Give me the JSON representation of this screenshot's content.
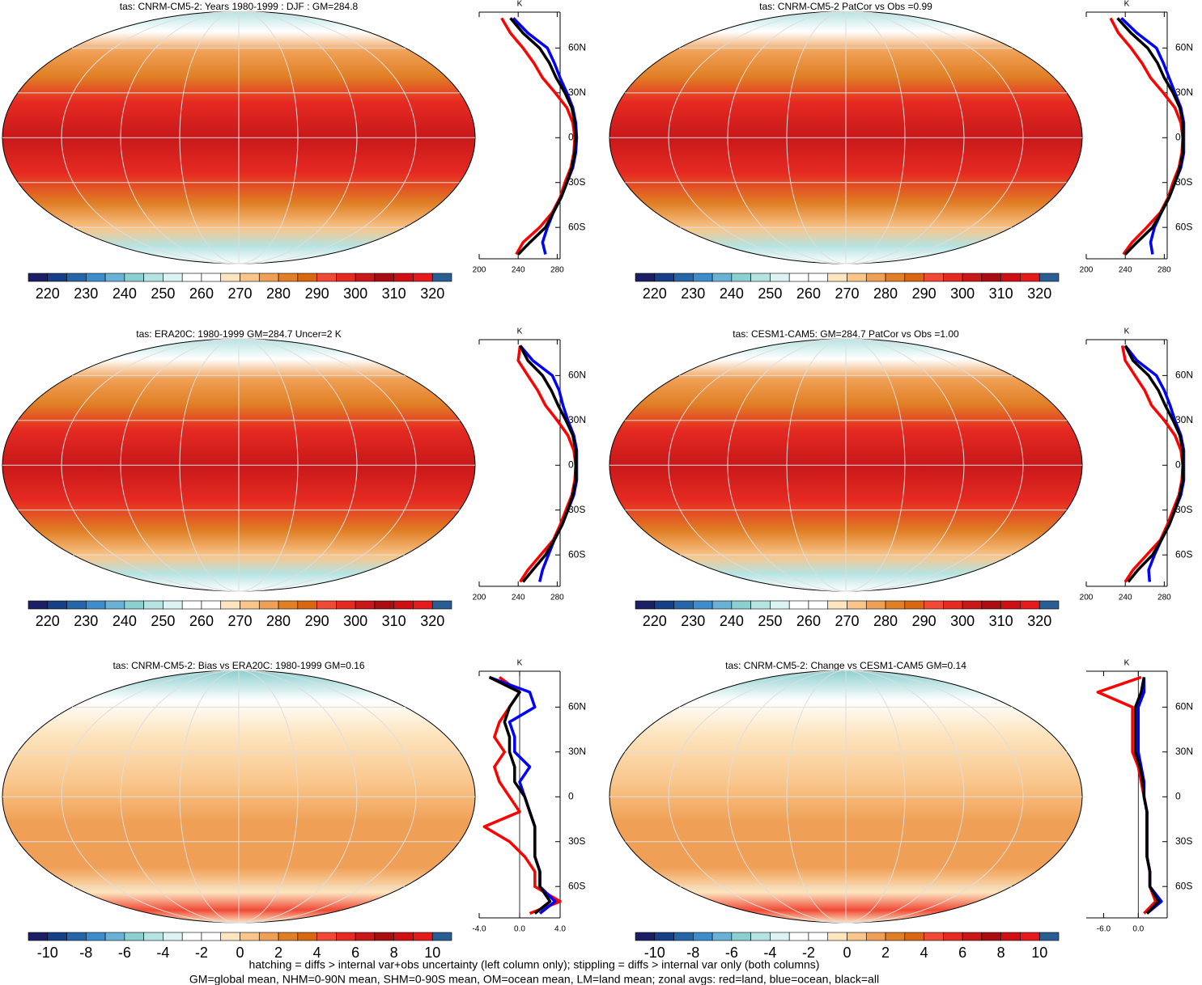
{
  "chart_data": [
    {
      "type": "map",
      "title": "tas: CNRM-CM5-2: Years 1980-1999 : DJF : GM=284.8",
      "clim": [
        215,
        325
      ],
      "cticks": [
        220,
        230,
        240,
        250,
        260,
        270,
        280,
        290,
        300,
        310,
        320
      ],
      "colors": [
        "#1c1f63",
        "#173f88",
        "#2565a8",
        "#3f8ccb",
        "#6ab1d6",
        "#8ccfd0",
        "#b5e3e2",
        "#dcf3f3",
        "#ffffff",
        "#ffffff",
        "#fde5c0",
        "#f9c58a",
        "#f0a056",
        "#e07f25",
        "#d96712",
        "#f04a36",
        "#e62a22",
        "#c8181a",
        "#a90d12",
        "#d00f15",
        "#e41a1c",
        "#2a5d91"
      ],
      "unit": "K",
      "lats": [
        80,
        70,
        60,
        50,
        40,
        30,
        20,
        10,
        0,
        -10,
        -20,
        -30,
        -40,
        -50,
        -60,
        -70,
        -78
      ],
      "xlim": [
        200,
        283
      ],
      "xticks": [
        200,
        240,
        280
      ],
      "ylim": [
        -81,
        84
      ],
      "yticks": [
        {
          "value": 60,
          "label": "60N"
        },
        {
          "value": 30,
          "label": "30N"
        },
        0,
        {
          "value": -30,
          "label": "30S"
        },
        {
          "value": -60,
          "label": "60S"
        }
      ],
      "series": [
        {
          "color": "#ff0000",
          "values": [
            223,
            232,
            245,
            256,
            265,
            278,
            290,
            296,
            298,
            297,
            294,
            288,
            283,
            275,
            262,
            245,
            238
          ]
        },
        {
          "color": "#0000ff",
          "values": [
            235,
            250,
            270,
            277,
            283,
            290,
            296,
            299,
            300,
            299,
            296,
            290,
            284,
            276,
            270,
            265,
            268
          ]
        },
        {
          "color": "#000000",
          "values": [
            232,
            245,
            262,
            272,
            279,
            288,
            295,
            298,
            299,
            298,
            295,
            290,
            284,
            276,
            268,
            252,
            240
          ]
        }
      ]
    },
    {
      "type": "map",
      "title": "tas: CNRM-CM5-2 PatCor vs Obs =0.99",
      "clim": [
        215,
        325
      ],
      "cticks": [
        220,
        230,
        240,
        250,
        260,
        270,
        280,
        290,
        300,
        310,
        320
      ],
      "colors": [
        "#1c1f63",
        "#173f88",
        "#2565a8",
        "#3f8ccb",
        "#6ab1d6",
        "#8ccfd0",
        "#b5e3e2",
        "#dcf3f3",
        "#ffffff",
        "#ffffff",
        "#fde5c0",
        "#f9c58a",
        "#f0a056",
        "#e07f25",
        "#d96712",
        "#f04a36",
        "#e62a22",
        "#c8181a",
        "#a90d12",
        "#d00f15",
        "#e41a1c",
        "#2a5d91"
      ],
      "unit": "K",
      "lats": [
        80,
        70,
        60,
        50,
        40,
        30,
        20,
        10,
        0,
        -10,
        -20,
        -30,
        -40,
        -50,
        -60,
        -70,
        -78
      ],
      "xlim": [
        200,
        283
      ],
      "xticks": [
        200,
        240,
        280
      ],
      "ylim": [
        -81,
        84
      ],
      "yticks": [
        {
          "value": 60,
          "label": "60N"
        },
        {
          "value": 30,
          "label": "30N"
        },
        0,
        {
          "value": -30,
          "label": "30S"
        },
        {
          "value": -60,
          "label": "60S"
        }
      ],
      "series": [
        {
          "color": "#ff0000",
          "values": [
            225,
            233,
            246,
            257,
            266,
            279,
            291,
            297,
            299,
            298,
            295,
            289,
            284,
            276,
            262,
            247,
            238
          ]
        },
        {
          "color": "#0000ff",
          "values": [
            236,
            252,
            272,
            279,
            285,
            291,
            297,
            300,
            300,
            300,
            297,
            291,
            285,
            277,
            270,
            266,
            268
          ]
        },
        {
          "color": "#000000",
          "values": [
            232,
            246,
            263,
            273,
            280,
            289,
            296,
            299,
            299,
            299,
            296,
            291,
            285,
            277,
            268,
            252,
            240
          ]
        }
      ]
    },
    {
      "type": "map",
      "title": "tas: ERA20C: 1980-1999 GM=284.7 Uncer=2 K",
      "clim": [
        215,
        325
      ],
      "cticks": [
        220,
        230,
        240,
        250,
        260,
        270,
        280,
        290,
        300,
        310,
        320
      ],
      "colors": [
        "#1c1f63",
        "#173f88",
        "#2565a8",
        "#3f8ccb",
        "#6ab1d6",
        "#8ccfd0",
        "#b5e3e2",
        "#dcf3f3",
        "#ffffff",
        "#ffffff",
        "#fde5c0",
        "#f9c58a",
        "#f0a056",
        "#e07f25",
        "#d96712",
        "#f04a36",
        "#e62a22",
        "#c8181a",
        "#a90d12",
        "#d00f15",
        "#e41a1c",
        "#2a5d91"
      ],
      "unit": "K",
      "lats": [
        80,
        70,
        60,
        50,
        40,
        30,
        20,
        10,
        0,
        -10,
        -20,
        -30,
        -40,
        -50,
        -60,
        -70,
        -78
      ],
      "xlim": [
        200,
        283
      ],
      "xticks": [
        200,
        240,
        280
      ],
      "ylim": [
        -81,
        84
      ],
      "yticks": [
        {
          "value": 60,
          "label": "60N"
        },
        {
          "value": 30,
          "label": "30N"
        },
        0,
        {
          "value": -30,
          "label": "30S"
        },
        {
          "value": -60,
          "label": "60S"
        }
      ],
      "series": [
        {
          "color": "#ff0000",
          "values": [
            242,
            240,
            250,
            260,
            268,
            280,
            291,
            297,
            299,
            298,
            295,
            289,
            283,
            276,
            263,
            250,
            242
          ]
        },
        {
          "color": "#0000ff",
          "values": [
            242,
            255,
            275,
            282,
            286,
            291,
            297,
            300,
            300,
            300,
            297,
            291,
            285,
            277,
            271,
            265,
            262
          ]
        },
        {
          "color": "#000000",
          "values": [
            242,
            250,
            265,
            274,
            281,
            289,
            296,
            299,
            299,
            299,
            296,
            291,
            285,
            277,
            268,
            255,
            245
          ]
        }
      ]
    },
    {
      "type": "map",
      "title": "tas: CESM1-CAM5: GM=284.7 PatCor vs Obs =1.00",
      "clim": [
        215,
        325
      ],
      "cticks": [
        220,
        230,
        240,
        250,
        260,
        270,
        280,
        290,
        300,
        310,
        320
      ],
      "colors": [
        "#1c1f63",
        "#173f88",
        "#2565a8",
        "#3f8ccb",
        "#6ab1d6",
        "#8ccfd0",
        "#b5e3e2",
        "#dcf3f3",
        "#ffffff",
        "#ffffff",
        "#fde5c0",
        "#f9c58a",
        "#f0a056",
        "#e07f25",
        "#d96712",
        "#f04a36",
        "#e62a22",
        "#c8181a",
        "#a90d12",
        "#d00f15",
        "#e41a1c",
        "#2a5d91"
      ],
      "unit": "K",
      "lats": [
        80,
        70,
        60,
        50,
        40,
        30,
        20,
        10,
        0,
        -10,
        -20,
        -30,
        -40,
        -50,
        -60,
        -70,
        -78
      ],
      "xlim": [
        200,
        283
      ],
      "xticks": [
        200,
        240,
        280
      ],
      "ylim": [
        -81,
        84
      ],
      "yticks": [
        {
          "value": 60,
          "label": "60N"
        },
        {
          "value": 30,
          "label": "30N"
        },
        0,
        {
          "value": -30,
          "label": "30S"
        },
        {
          "value": -60,
          "label": "60S"
        }
      ],
      "series": [
        {
          "color": "#ff0000",
          "values": [
            237,
            240,
            250,
            260,
            267,
            280,
            291,
            297,
            299,
            298,
            295,
            289,
            283,
            276,
            262,
            248,
            240
          ]
        },
        {
          "color": "#0000ff",
          "values": [
            240,
            252,
            272,
            280,
            286,
            291,
            297,
            300,
            300,
            300,
            297,
            291,
            285,
            277,
            270,
            264,
            265
          ]
        },
        {
          "color": "#000000",
          "values": [
            240,
            248,
            264,
            274,
            281,
            289,
            296,
            299,
            299,
            299,
            296,
            291,
            285,
            277,
            268,
            253,
            243
          ]
        }
      ]
    },
    {
      "type": "map",
      "title": "tas: CNRM-CM5-2: Bias vs ERA20C: 1980-1999 GM=0.16",
      "clim": [
        -11,
        11
      ],
      "cticks": [
        -10,
        -8,
        -6,
        -4,
        -2,
        0,
        2,
        4,
        6,
        8,
        10
      ],
      "colors": [
        "#1c1f63",
        "#173f88",
        "#2565a8",
        "#3f8ccb",
        "#6ab1d6",
        "#8ccfd0",
        "#b5e3e2",
        "#dcf3f3",
        "#ffffff",
        "#ffffff",
        "#fde5c0",
        "#f9c58a",
        "#f0a056",
        "#e07f25",
        "#d96712",
        "#f04a36",
        "#e62a22",
        "#c8181a",
        "#a90d12",
        "#d00f15",
        "#e41a1c",
        "#2a5d91"
      ],
      "unit": "K",
      "lats": [
        80,
        70,
        60,
        50,
        40,
        30,
        20,
        10,
        0,
        -10,
        -20,
        -30,
        -40,
        -50,
        -60,
        -70,
        -78
      ],
      "xlim": [
        -4,
        4
      ],
      "xticks": [
        {
          "value": -4,
          "label": "-4.0"
        },
        {
          "value": 0,
          "label": "0.0"
        },
        {
          "value": 4,
          "label": "4.0"
        }
      ],
      "ylim": [
        -81,
        84
      ],
      "yticks": [
        {
          "value": 60,
          "label": "60N"
        },
        {
          "value": 30,
          "label": "30N"
        },
        0,
        {
          "value": -30,
          "label": "30S"
        },
        {
          "value": -60,
          "label": "60S"
        }
      ],
      "series": [
        {
          "color": "#ff0000",
          "values": [
            -2,
            0,
            -1,
            -2,
            -2.5,
            -1.5,
            -2.5,
            -2,
            -1,
            0,
            -3.5,
            -1,
            0.5,
            1.5,
            1.5,
            4,
            1
          ]
        },
        {
          "color": "#0000ff",
          "values": [
            -3,
            1,
            1.5,
            -1,
            -0.5,
            -0.5,
            1,
            0,
            0.5,
            1,
            1.5,
            1.5,
            1.5,
            2,
            2,
            3.5,
            2
          ]
        },
        {
          "color": "#000000",
          "values": [
            -3,
            0,
            -1,
            -1.5,
            -1,
            -1,
            -0.5,
            -0.5,
            0.5,
            1,
            1.5,
            1.5,
            1.5,
            2,
            2,
            3,
            1.5
          ]
        }
      ]
    },
    {
      "type": "map",
      "title": "tas: CNRM-CM5-2: Change vs CESM1-CAM5 GM=0.14",
      "clim": [
        -11,
        11
      ],
      "cticks": [
        -10,
        -8,
        -6,
        -4,
        -2,
        0,
        2,
        4,
        6,
        8,
        10
      ],
      "colors": [
        "#1c1f63",
        "#173f88",
        "#2565a8",
        "#3f8ccb",
        "#6ab1d6",
        "#8ccfd0",
        "#b5e3e2",
        "#dcf3f3",
        "#ffffff",
        "#ffffff",
        "#fde5c0",
        "#f9c58a",
        "#f0a056",
        "#e07f25",
        "#d96712",
        "#f04a36",
        "#e62a22",
        "#c8181a",
        "#a90d12",
        "#d00f15",
        "#e41a1c",
        "#2a5d91"
      ],
      "unit": "K",
      "lats": [
        80,
        70,
        60,
        50,
        40,
        30,
        20,
        10,
        0,
        -10,
        -20,
        -30,
        -40,
        -50,
        -60,
        -70,
        -78
      ],
      "xlim": [
        -9,
        5
      ],
      "xticks": [
        {
          "value": -6,
          "label": "-6.0"
        },
        {
          "value": 0,
          "label": "0.0"
        }
      ],
      "ylim": [
        -81,
        84
      ],
      "yticks": [
        {
          "value": 60,
          "label": "60N"
        },
        {
          "value": 30,
          "label": "30N"
        },
        0,
        {
          "value": -30,
          "label": "30S"
        },
        {
          "value": -60,
          "label": "60S"
        }
      ],
      "series": [
        {
          "color": "#ff0000",
          "values": [
            0.5,
            -7,
            -1,
            -1,
            -1,
            -1,
            0,
            0.5,
            1,
            1.5,
            1.5,
            1.5,
            1.5,
            2,
            2,
            3,
            1
          ]
        },
        {
          "color": "#0000ff",
          "values": [
            1,
            1,
            0,
            0,
            0,
            0,
            0.5,
            1,
            1,
            1.5,
            1.5,
            1.5,
            1.5,
            2,
            2,
            4,
            1.5
          ]
        },
        {
          "color": "#000000",
          "values": [
            1,
            0.5,
            -0.5,
            -0.5,
            -0.5,
            -0.5,
            0.3,
            0.8,
            1,
            1.5,
            1.5,
            1.5,
            1.5,
            2,
            2,
            3.5,
            1.5
          ]
        }
      ]
    }
  ],
  "footer": [
    "hatching = diffs > internal var+obs uncertainty (left column only); stippling = diffs > internal var only (both columns)",
    "GM=global mean, NHM=0-90N mean, SHM=0-90S mean, OM=ocean mean, LM=land mean; zonal avgs: red=land, blue=ocean, black=all"
  ]
}
